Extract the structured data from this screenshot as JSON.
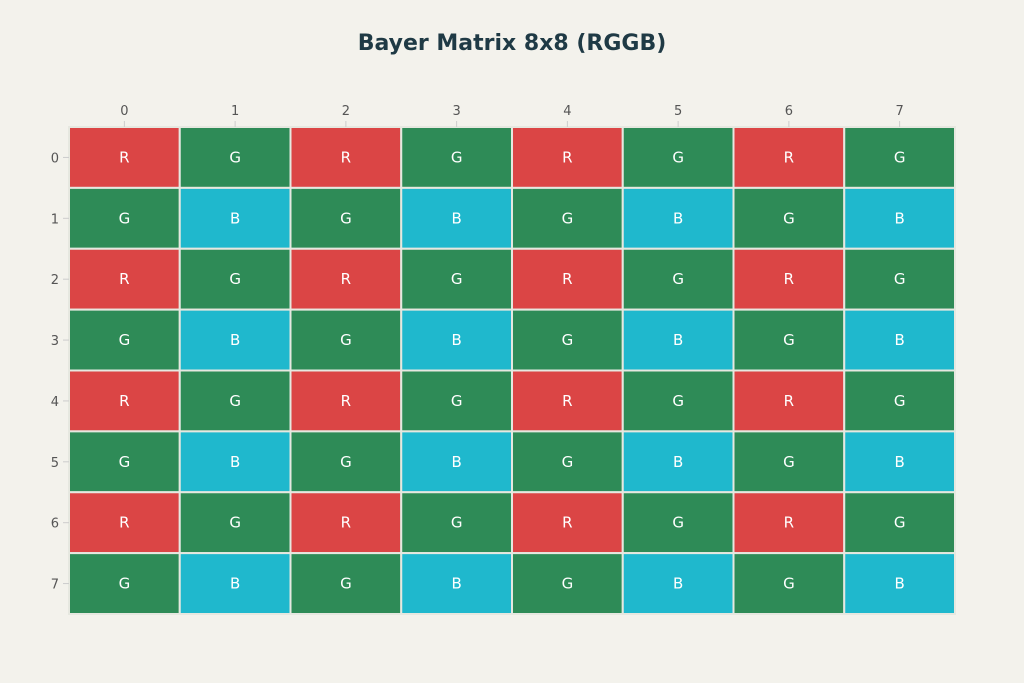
{
  "chart_data": {
    "type": "heatmap",
    "title": "Bayer Matrix 8x8 (RGGB)",
    "x_ticks": [
      "0",
      "1",
      "2",
      "3",
      "4",
      "5",
      "6",
      "7"
    ],
    "y_ticks": [
      "0",
      "1",
      "2",
      "3",
      "4",
      "5",
      "6",
      "7"
    ],
    "x_axis_position": "top",
    "y_axis_order": "top-to-bottom",
    "grid": false,
    "legend": "none",
    "colors": {
      "R": "#DB4545",
      "G": "#2E8B57",
      "B": "#1FB8CD"
    },
    "background": "#F3F2EC",
    "cells": [
      [
        "R",
        "G",
        "R",
        "G",
        "R",
        "G",
        "R",
        "G"
      ],
      [
        "G",
        "B",
        "G",
        "B",
        "G",
        "B",
        "G",
        "B"
      ],
      [
        "R",
        "G",
        "R",
        "G",
        "R",
        "G",
        "R",
        "G"
      ],
      [
        "G",
        "B",
        "G",
        "B",
        "G",
        "B",
        "G",
        "B"
      ],
      [
        "R",
        "G",
        "R",
        "G",
        "R",
        "G",
        "R",
        "G"
      ],
      [
        "G",
        "B",
        "G",
        "B",
        "G",
        "B",
        "G",
        "B"
      ],
      [
        "R",
        "G",
        "R",
        "G",
        "R",
        "G",
        "R",
        "G"
      ],
      [
        "G",
        "B",
        "G",
        "B",
        "G",
        "B",
        "G",
        "B"
      ]
    ]
  }
}
